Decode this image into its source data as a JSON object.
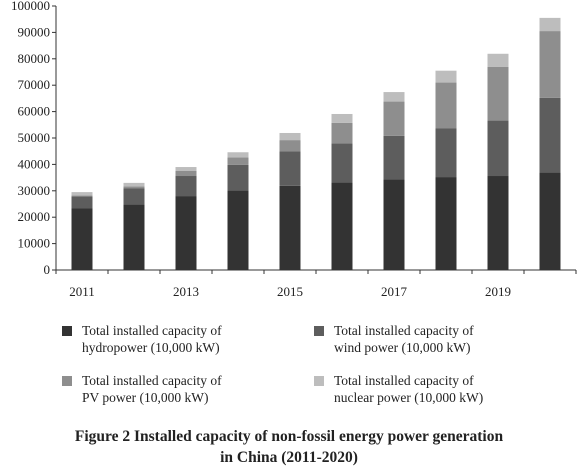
{
  "chart_data": {
    "type": "bar",
    "stacked": true,
    "title": "",
    "xlabel": "",
    "ylabel": "",
    "ylim": [
      0,
      100000
    ],
    "yticks": [
      0,
      10000,
      20000,
      30000,
      40000,
      50000,
      60000,
      70000,
      80000,
      90000,
      100000
    ],
    "categories": [
      "2011",
      "2012",
      "2013",
      "2014",
      "2015",
      "2016",
      "2017",
      "2018",
      "2019",
      "2020"
    ],
    "xtick_labels": [
      "2011",
      "",
      "2013",
      "",
      "2015",
      "",
      "2017",
      "",
      "2019",
      ""
    ],
    "grid": false,
    "legend_position": "bottom",
    "series": [
      {
        "name": "Total installed capacity of hydropower (10,000 kW)",
        "color": "#333333",
        "values": [
          23300,
          24900,
          28000,
          30200,
          31900,
          33200,
          34400,
          35200,
          35600,
          37000
        ]
      },
      {
        "name": "Total installed capacity of wind power (10,000 kW)",
        "color": "#5d5d5d",
        "values": [
          4600,
          6100,
          7600,
          9600,
          13100,
          14800,
          16400,
          18400,
          21000,
          28200
        ]
      },
      {
        "name": "Total installed capacity of PV power (10,000 kW)",
        "color": "#8e8e8e",
        "values": [
          300,
          700,
          1900,
          2800,
          4200,
          7700,
          13000,
          17400,
          20400,
          25300
        ]
      },
      {
        "name": "Total installed capacity of nuclear power (10,000 kW)",
        "color": "#bdbdbd",
        "values": [
          1300,
          1300,
          1500,
          2000,
          2700,
          3400,
          3600,
          4500,
          4900,
          5000
        ]
      }
    ]
  },
  "legend": {
    "items": [
      {
        "label": "Total installed capacity of\nhydropower (10,000 kW)",
        "color": "#333333"
      },
      {
        "label": "Total installed capacity of\nwind power (10,000 kW)",
        "color": "#5d5d5d"
      },
      {
        "label": "Total installed capacity of\nPV power (10,000 kW)",
        "color": "#8e8e8e"
      },
      {
        "label": "Total installed capacity of\nnuclear power (10,000 kW)",
        "color": "#bdbdbd"
      }
    ]
  },
  "caption": "Figure 2    Installed capacity of non-fossil energy power generation\nin China (2011-2020)"
}
